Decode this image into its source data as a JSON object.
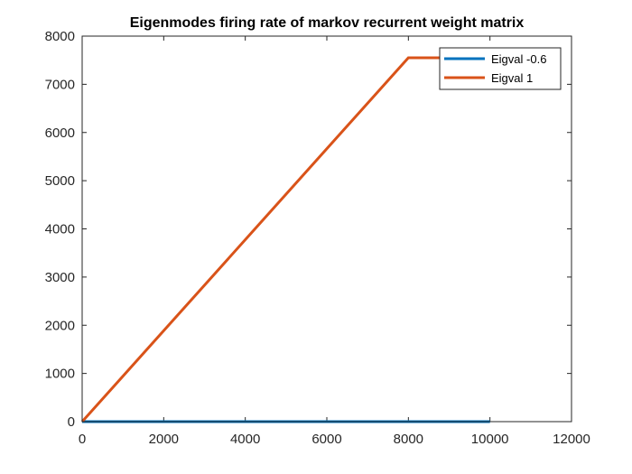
{
  "chart_data": {
    "type": "line",
    "title": "Eigenmodes firing rate of markov recurrent weight matrix",
    "xlabel": "",
    "ylabel": "",
    "xlim": [
      0,
      12000
    ],
    "ylim": [
      0,
      8000
    ],
    "x_ticks": [
      0,
      2000,
      4000,
      6000,
      8000,
      10000,
      12000
    ],
    "y_ticks": [
      0,
      1000,
      2000,
      3000,
      4000,
      5000,
      6000,
      7000,
      8000
    ],
    "x_tick_labels": [
      "0",
      "2000",
      "4000",
      "6000",
      "8000",
      "10000",
      "12000"
    ],
    "y_tick_labels": [
      "0",
      "1000",
      "2000",
      "3000",
      "4000",
      "5000",
      "6000",
      "7000",
      "8000"
    ],
    "grid": false,
    "legend_position": "top-right",
    "series": [
      {
        "name": "Eigval -0.6",
        "color": "#0072BD",
        "x": [
          0,
          10000
        ],
        "y": [
          0,
          0
        ]
      },
      {
        "name": "Eigval 1",
        "color": "#D95319",
        "x": [
          0,
          8000,
          10000
        ],
        "y": [
          0,
          7550,
          7550
        ]
      }
    ]
  }
}
